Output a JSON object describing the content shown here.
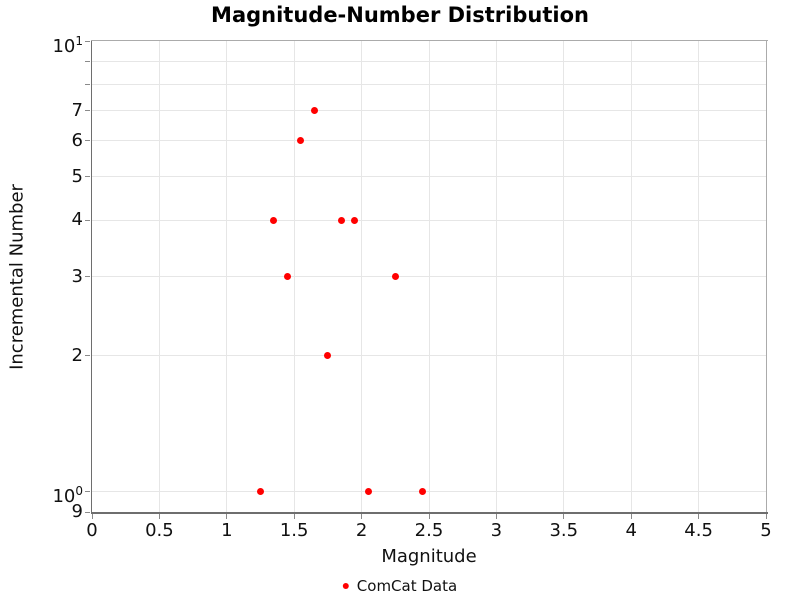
{
  "chart_data": {
    "type": "scatter",
    "title": "Magnitude-Number Distribution",
    "xlabel": "Magnitude",
    "ylabel": "Incremental Number",
    "grid": "on",
    "legend_position": "below",
    "x_axis": {
      "scale": "linear",
      "min": 0,
      "max": 5,
      "ticks": [
        {
          "v": 0,
          "label": "0"
        },
        {
          "v": 0.5,
          "label": "0.5"
        },
        {
          "v": 1,
          "label": "1"
        },
        {
          "v": 1.5,
          "label": "1.5"
        },
        {
          "v": 2,
          "label": "2"
        },
        {
          "v": 2.5,
          "label": "2.5"
        },
        {
          "v": 3,
          "label": "3"
        },
        {
          "v": 3.5,
          "label": "3.5"
        },
        {
          "v": 4,
          "label": "4"
        },
        {
          "v": 4.5,
          "label": "4.5"
        },
        {
          "v": 5,
          "label": "5"
        }
      ],
      "grid_values": [
        0.5,
        1,
        1.5,
        2,
        2.5,
        3,
        3.5,
        4,
        4.5
      ]
    },
    "y_axis": {
      "scale": "log",
      "min": 0.9,
      "max": 10,
      "ticks": [
        {
          "v": 0.9,
          "label": "9"
        },
        {
          "v": 1,
          "label": "10^0"
        },
        {
          "v": 2,
          "label": "2"
        },
        {
          "v": 3,
          "label": "3"
        },
        {
          "v": 4,
          "label": "4"
        },
        {
          "v": 5,
          "label": "5"
        },
        {
          "v": 6,
          "label": "6"
        },
        {
          "v": 7,
          "label": "7"
        },
        {
          "v": 8,
          "label": ""
        },
        {
          "v": 9,
          "label": ""
        },
        {
          "v": 10,
          "label": "10^1"
        }
      ],
      "grid_values": [
        1,
        2,
        3,
        4,
        5,
        6,
        7,
        8,
        9
      ]
    },
    "series": [
      {
        "name": "ComCat Data",
        "color": "#ff0000",
        "marker": "circle",
        "points": [
          [
            1.25,
            1
          ],
          [
            1.35,
            4
          ],
          [
            1.45,
            3
          ],
          [
            1.55,
            6
          ],
          [
            1.65,
            7
          ],
          [
            1.75,
            2
          ],
          [
            1.85,
            4
          ],
          [
            1.95,
            4
          ],
          [
            2.05,
            1
          ],
          [
            2.25,
            3
          ],
          [
            2.45,
            1
          ]
        ]
      }
    ]
  },
  "colors": {
    "point": "#ff0000",
    "grid": "#e6e6e6",
    "axis_line": "#6e6e6e",
    "outline": "#ababab",
    "text": "#000000"
  }
}
